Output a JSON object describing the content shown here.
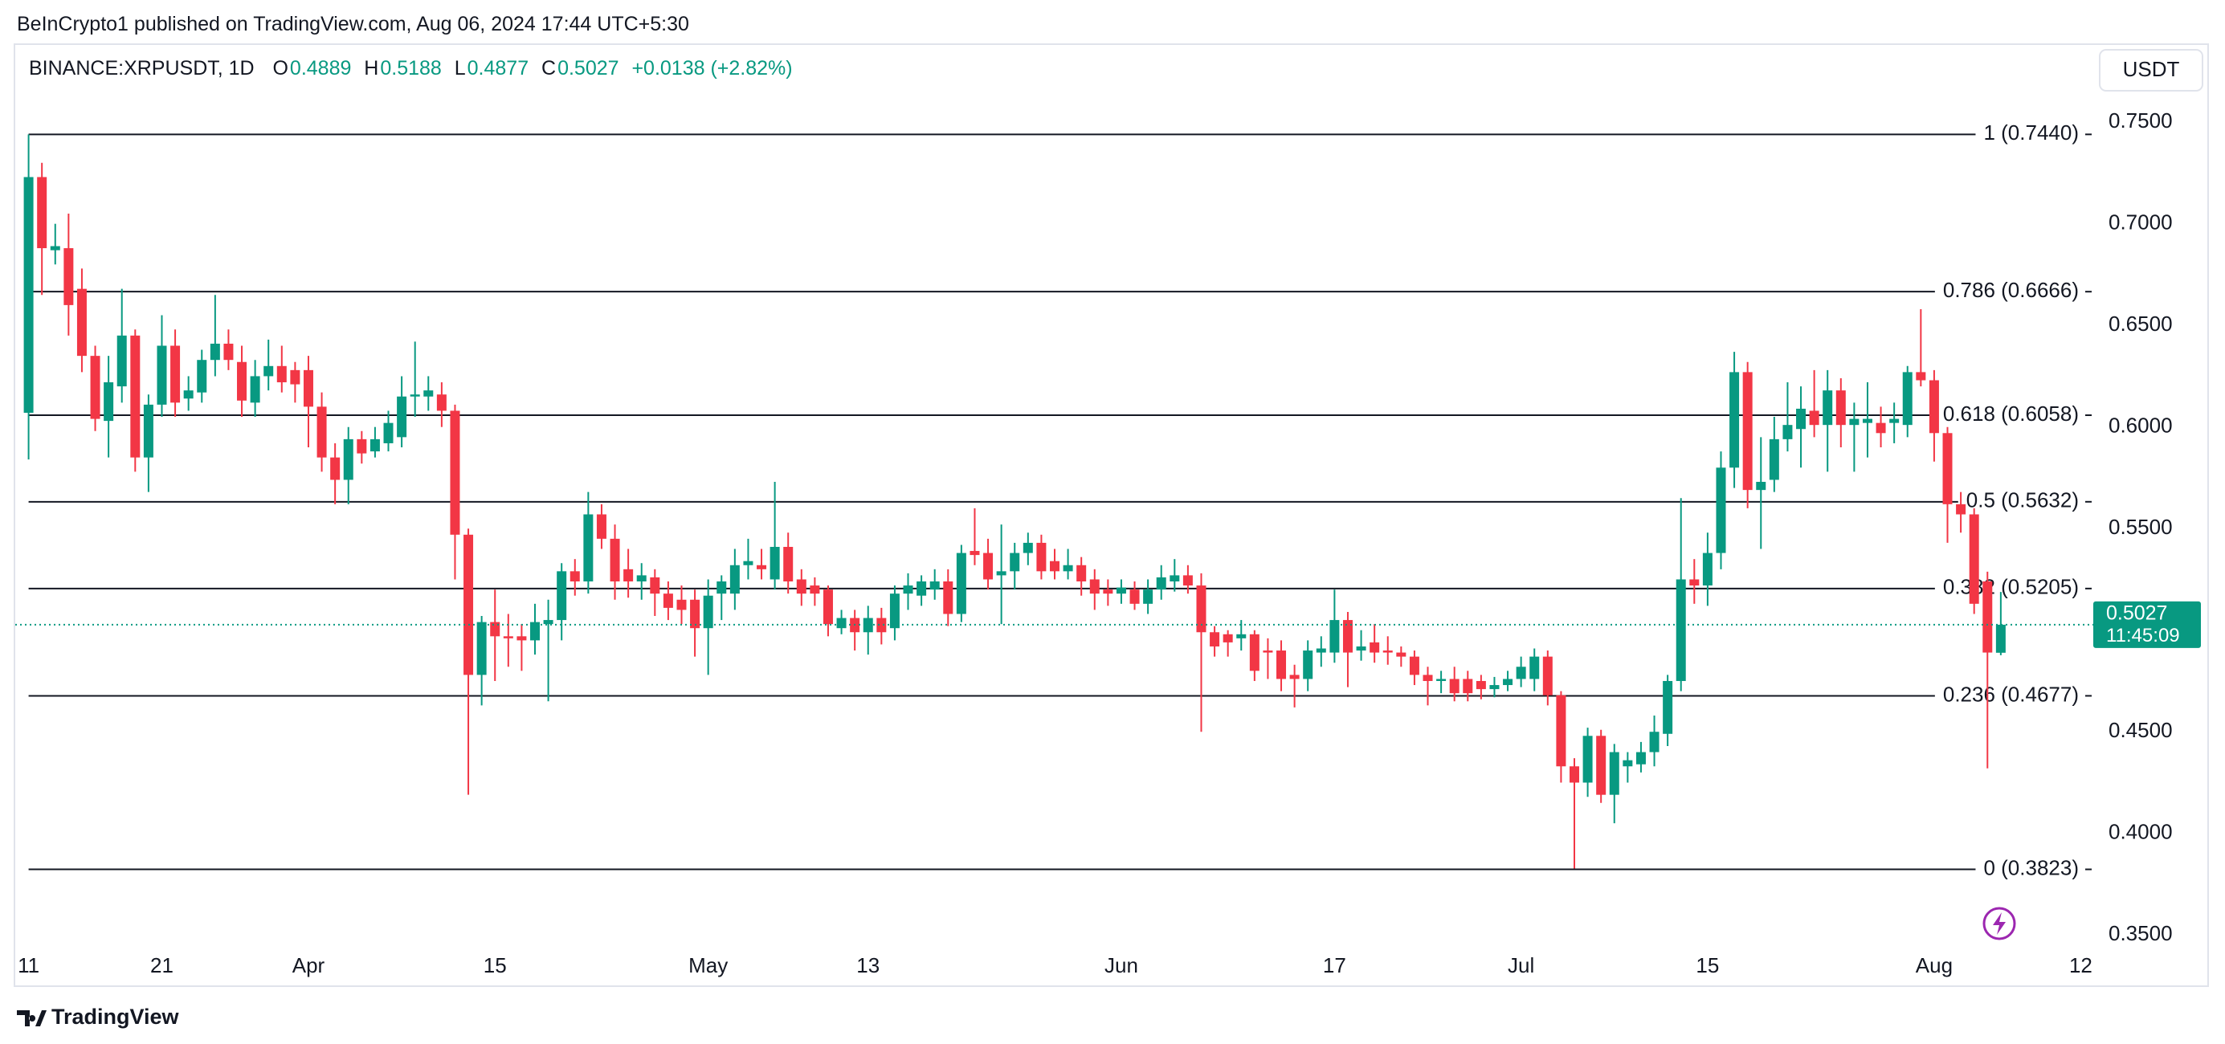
{
  "header": {
    "publisher": "BeInCrypto1 published on TradingView.com, Aug 06, 2024 17:44 UTC+5:30",
    "symbol": "BINANCE:XRPUSDT, 1D",
    "ohlc_labels": [
      "O",
      "H",
      "L",
      "C"
    ],
    "change": "+0.0138 (+2.82%)",
    "currency": "USDT"
  },
  "footer": {
    "brand": "TradingView"
  },
  "chart_data": {
    "type": "candlestick",
    "up_color": "#089981",
    "down_color": "#f23645",
    "grid": false,
    "countdown": "11:45:09",
    "x": [
      "03-11",
      "03-12",
      "03-13",
      "03-14",
      "03-15",
      "03-16",
      "03-17",
      "03-18",
      "03-19",
      "03-20",
      "03-21",
      "03-22",
      "03-23",
      "03-24",
      "03-25",
      "03-26",
      "03-27",
      "03-28",
      "03-29",
      "03-30",
      "03-31",
      "04-01",
      "04-02",
      "04-03",
      "04-04",
      "04-05",
      "04-06",
      "04-07",
      "04-08",
      "04-09",
      "04-10",
      "04-11",
      "04-12",
      "04-13",
      "04-14",
      "04-15",
      "04-16",
      "04-17",
      "04-18",
      "04-19",
      "04-20",
      "04-21",
      "04-22",
      "04-23",
      "04-24",
      "04-25",
      "04-26",
      "04-27",
      "04-28",
      "04-29",
      "04-30",
      "05-01",
      "05-02",
      "05-03",
      "05-04",
      "05-05",
      "05-06",
      "05-07",
      "05-08",
      "05-09",
      "05-10",
      "05-11",
      "05-12",
      "05-13",
      "05-14",
      "05-15",
      "05-16",
      "05-17",
      "05-18",
      "05-19",
      "05-20",
      "05-21",
      "05-22",
      "05-23",
      "05-24",
      "05-25",
      "05-26",
      "05-27",
      "05-28",
      "05-29",
      "05-30",
      "05-31",
      "06-01",
      "06-02",
      "06-03",
      "06-04",
      "06-05",
      "06-06",
      "06-07",
      "06-08",
      "06-09",
      "06-10",
      "06-11",
      "06-12",
      "06-13",
      "06-14",
      "06-15",
      "06-16",
      "06-17",
      "06-18",
      "06-19",
      "06-20",
      "06-21",
      "06-22",
      "06-23",
      "06-24",
      "06-25",
      "06-26",
      "06-27",
      "06-28",
      "06-29",
      "06-30",
      "07-01",
      "07-02",
      "07-03",
      "07-04",
      "07-05",
      "07-06",
      "07-07",
      "07-08",
      "07-09",
      "07-10",
      "07-11",
      "07-12",
      "07-13",
      "07-14",
      "07-15",
      "07-16",
      "07-17",
      "07-18",
      "07-19",
      "07-20",
      "07-21",
      "07-22",
      "07-23",
      "07-24",
      "07-25",
      "07-26",
      "07-27",
      "07-28",
      "07-29",
      "07-30",
      "07-31",
      "08-01",
      "08-02",
      "08-03",
      "08-04",
      "08-05",
      "08-06"
    ],
    "open": [
      0.607,
      0.723,
      0.687,
      0.688,
      0.668,
      0.635,
      0.603,
      0.62,
      0.645,
      0.585,
      0.611,
      0.64,
      0.614,
      0.617,
      0.633,
      0.641,
      0.632,
      0.612,
      0.625,
      0.63,
      0.628,
      0.628,
      0.61,
      0.585,
      0.574,
      0.594,
      0.588,
      0.592,
      0.595,
      0.615,
      0.615,
      0.616,
      0.608,
      0.547,
      0.478,
      0.504,
      0.497,
      0.497,
      0.495,
      0.503,
      0.505,
      0.529,
      0.524,
      0.557,
      0.545,
      0.53,
      0.524,
      0.526,
      0.518,
      0.515,
      0.515,
      0.501,
      0.518,
      0.518,
      0.532,
      0.532,
      0.525,
      0.541,
      0.525,
      0.522,
      0.52,
      0.501,
      0.506,
      0.499,
      0.506,
      0.501,
      0.518,
      0.517,
      0.52,
      0.524,
      0.508,
      0.539,
      0.538,
      0.527,
      0.529,
      0.538,
      0.543,
      0.534,
      0.529,
      0.532,
      0.525,
      0.52,
      0.518,
      0.52,
      0.513,
      0.52,
      0.524,
      0.527,
      0.522,
      0.499,
      0.498,
      0.496,
      0.498,
      0.49,
      0.49,
      0.478,
      0.476,
      0.489,
      0.489,
      0.505,
      0.49,
      0.494,
      0.49,
      0.489,
      0.487,
      0.478,
      0.475,
      0.476,
      0.476,
      0.475,
      0.471,
      0.473,
      0.476,
      0.476,
      0.487,
      0.468,
      0.433,
      0.425,
      0.448,
      0.419,
      0.433,
      0.434,
      0.44,
      0.449,
      0.475,
      0.525,
      0.522,
      0.538,
      0.58,
      0.627,
      0.569,
      0.574,
      0.594,
      0.599,
      0.608,
      0.601,
      0.618,
      0.601,
      0.602,
      0.602,
      0.602,
      0.601,
      0.627,
      0.623,
      0.597,
      0.562,
      0.557,
      0.524,
      0.4889
    ],
    "high": [
      0.744,
      0.73,
      0.7,
      0.705,
      0.678,
      0.64,
      0.635,
      0.668,
      0.648,
      0.616,
      0.655,
      0.648,
      0.625,
      0.638,
      0.665,
      0.648,
      0.64,
      0.633,
      0.643,
      0.64,
      0.632,
      0.635,
      0.617,
      0.592,
      0.6,
      0.598,
      0.6,
      0.608,
      0.625,
      0.642,
      0.625,
      0.622,
      0.611,
      0.55,
      0.507,
      0.52,
      0.508,
      0.503,
      0.513,
      0.515,
      0.533,
      0.535,
      0.568,
      0.562,
      0.552,
      0.54,
      0.533,
      0.53,
      0.524,
      0.522,
      0.52,
      0.525,
      0.527,
      0.54,
      0.545,
      0.54,
      0.573,
      0.548,
      0.53,
      0.526,
      0.522,
      0.51,
      0.51,
      0.512,
      0.511,
      0.522,
      0.528,
      0.527,
      0.53,
      0.53,
      0.542,
      0.56,
      0.545,
      0.552,
      0.543,
      0.548,
      0.547,
      0.54,
      0.54,
      0.536,
      0.53,
      0.525,
      0.525,
      0.524,
      0.525,
      0.532,
      0.535,
      0.532,
      0.528,
      0.502,
      0.5,
      0.505,
      0.5,
      0.496,
      0.495,
      0.483,
      0.495,
      0.497,
      0.52,
      0.509,
      0.5,
      0.503,
      0.497,
      0.492,
      0.49,
      0.482,
      0.48,
      0.482,
      0.48,
      0.478,
      0.477,
      0.48,
      0.487,
      0.491,
      0.49,
      0.47,
      0.437,
      0.452,
      0.451,
      0.444,
      0.44,
      0.445,
      0.458,
      0.478,
      0.565,
      0.535,
      0.548,
      0.588,
      0.637,
      0.632,
      0.595,
      0.605,
      0.622,
      0.62,
      0.628,
      0.628,
      0.624,
      0.612,
      0.622,
      0.61,
      0.612,
      0.63,
      0.658,
      0.628,
      0.6,
      0.568,
      0.56,
      0.5288,
      0.5188
    ],
    "low": [
      0.584,
      0.665,
      0.68,
      0.645,
      0.627,
      0.598,
      0.585,
      0.612,
      0.578,
      0.568,
      0.605,
      0.605,
      0.608,
      0.612,
      0.625,
      0.628,
      0.605,
      0.605,
      0.618,
      0.617,
      0.612,
      0.59,
      0.578,
      0.562,
      0.562,
      0.582,
      0.585,
      0.588,
      0.59,
      0.605,
      0.608,
      0.6,
      0.525,
      0.419,
      0.463,
      0.475,
      0.482,
      0.48,
      0.488,
      0.465,
      0.495,
      0.517,
      0.518,
      0.54,
      0.515,
      0.516,
      0.515,
      0.507,
      0.505,
      0.503,
      0.487,
      0.478,
      0.505,
      0.51,
      0.525,
      0.525,
      0.52,
      0.518,
      0.512,
      0.512,
      0.497,
      0.498,
      0.49,
      0.488,
      0.493,
      0.495,
      0.51,
      0.512,
      0.515,
      0.502,
      0.504,
      0.532,
      0.52,
      0.503,
      0.52,
      0.532,
      0.525,
      0.525,
      0.525,
      0.517,
      0.51,
      0.512,
      0.513,
      0.51,
      0.508,
      0.515,
      0.519,
      0.518,
      0.45,
      0.487,
      0.487,
      0.49,
      0.475,
      0.476,
      0.47,
      0.462,
      0.47,
      0.482,
      0.484,
      0.472,
      0.485,
      0.484,
      0.483,
      0.482,
      0.473,
      0.463,
      0.469,
      0.465,
      0.465,
      0.466,
      0.467,
      0.47,
      0.472,
      0.47,
      0.463,
      0.425,
      0.3827,
      0.418,
      0.415,
      0.405,
      0.425,
      0.43,
      0.433,
      0.443,
      0.47,
      0.513,
      0.512,
      0.53,
      0.57,
      0.56,
      0.54,
      0.568,
      0.588,
      0.58,
      0.595,
      0.578,
      0.59,
      0.578,
      0.585,
      0.59,
      0.592,
      0.595,
      0.62,
      0.583,
      0.543,
      0.548,
      0.508,
      0.432,
      0.4877
    ],
    "close": [
      0.723,
      0.688,
      0.689,
      0.66,
      0.635,
      0.604,
      0.622,
      0.645,
      0.585,
      0.611,
      0.64,
      0.612,
      0.618,
      0.633,
      0.641,
      0.633,
      0.613,
      0.625,
      0.63,
      0.622,
      0.621,
      0.61,
      0.585,
      0.574,
      0.594,
      0.587,
      0.594,
      0.602,
      0.615,
      0.616,
      0.618,
      0.608,
      0.547,
      0.478,
      0.504,
      0.497,
      0.496,
      0.495,
      0.504,
      0.505,
      0.529,
      0.524,
      0.557,
      0.545,
      0.524,
      0.524,
      0.527,
      0.518,
      0.511,
      0.51,
      0.501,
      0.517,
      0.524,
      0.532,
      0.534,
      0.53,
      0.541,
      0.524,
      0.518,
      0.518,
      0.503,
      0.506,
      0.499,
      0.506,
      0.499,
      0.518,
      0.522,
      0.524,
      0.524,
      0.508,
      0.538,
      0.537,
      0.525,
      0.529,
      0.538,
      0.543,
      0.529,
      0.529,
      0.532,
      0.524,
      0.518,
      0.518,
      0.521,
      0.513,
      0.52,
      0.526,
      0.527,
      0.522,
      0.499,
      0.492,
      0.494,
      0.498,
      0.48,
      0.489,
      0.476,
      0.476,
      0.49,
      0.491,
      0.505,
      0.489,
      0.492,
      0.489,
      0.489,
      0.487,
      0.478,
      0.475,
      0.476,
      0.469,
      0.469,
      0.471,
      0.473,
      0.476,
      0.482,
      0.487,
      0.468,
      0.433,
      0.425,
      0.448,
      0.419,
      0.44,
      0.436,
      0.44,
      0.45,
      0.475,
      0.525,
      0.522,
      0.538,
      0.58,
      0.627,
      0.569,
      0.573,
      0.594,
      0.601,
      0.609,
      0.601,
      0.618,
      0.601,
      0.604,
      0.604,
      0.597,
      0.604,
      0.627,
      0.623,
      0.597,
      0.562,
      0.557,
      0.513,
      0.489,
      0.5027
    ],
    "xlim": [
      "03-10",
      "08-13"
    ],
    "xticks": [
      {
        "value": "03-11",
        "label": "11"
      },
      {
        "value": "03-21",
        "label": "21"
      },
      {
        "value": "04-01",
        "label": "Apr"
      },
      {
        "value": "04-15",
        "label": "15"
      },
      {
        "value": "05-01",
        "label": "May"
      },
      {
        "value": "05-13",
        "label": "13"
      },
      {
        "value": "06-01",
        "label": "Jun"
      },
      {
        "value": "06-17",
        "label": "17"
      },
      {
        "value": "07-01",
        "label": "Jul"
      },
      {
        "value": "07-15",
        "label": "15"
      },
      {
        "value": "08-01",
        "label": "Aug"
      },
      {
        "value": "08-12",
        "label": "12"
      }
    ],
    "ylim": [
      0.3422,
      0.7884
    ],
    "yticks": [
      {
        "value": 0.35,
        "label": "0.3500"
      },
      {
        "value": 0.4,
        "label": "0.4000"
      },
      {
        "value": 0.45,
        "label": "0.4500"
      },
      {
        "value": 0.5,
        "label": "0.5000"
      },
      {
        "value": 0.55,
        "label": "0.5500"
      },
      {
        "value": 0.6,
        "label": "0.6000"
      },
      {
        "value": 0.65,
        "label": "0.6500"
      },
      {
        "value": 0.7,
        "label": "0.7000"
      },
      {
        "value": 0.75,
        "label": "0.7500"
      }
    ],
    "levels": [
      {
        "value": 0.744,
        "label": "1 (0.7440)"
      },
      {
        "value": 0.6666,
        "label": "0.786 (0.6666)"
      },
      {
        "value": 0.6058,
        "label": "0.618 (0.6058)"
      },
      {
        "value": 0.5632,
        "label": "0.5 (0.5632)"
      },
      {
        "value": 0.5205,
        "label": "0.382 (0.5205)"
      },
      {
        "value": 0.4677,
        "label": "0.236 (0.4677)"
      },
      {
        "value": 0.3823,
        "label": "0 (0.3823)"
      }
    ]
  }
}
